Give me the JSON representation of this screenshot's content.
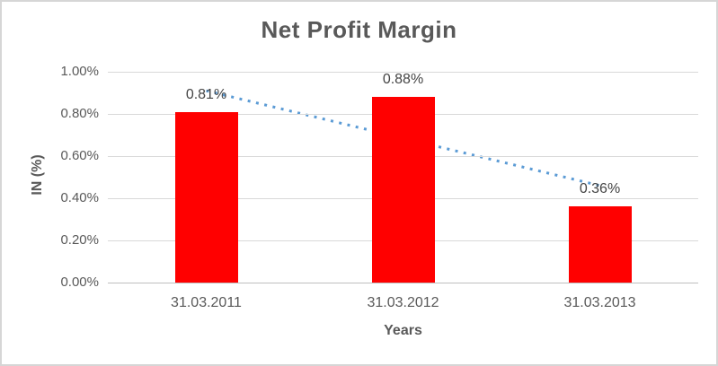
{
  "chart_data": {
    "type": "bar",
    "title": "Net Profit Margin",
    "xlabel": "Years",
    "ylabel": "IN (%)",
    "categories": [
      "31.03.2011",
      "31.03.2012",
      "31.03.2013"
    ],
    "values": [
      0.81,
      0.88,
      0.36
    ],
    "value_labels": [
      "0.81%",
      "0.88%",
      "0.36%"
    ],
    "ylim": [
      0,
      1.0
    ],
    "yticks": [
      {
        "value": 1.0,
        "label": "1.00%"
      },
      {
        "value": 0.8,
        "label": "0.80%"
      },
      {
        "value": 0.6,
        "label": "0.60%"
      },
      {
        "value": 0.4,
        "label": "0.40%"
      },
      {
        "value": 0.2,
        "label": "0.20%"
      },
      {
        "value": 0.0,
        "label": "0.00%"
      }
    ],
    "grid": true,
    "legend": "none",
    "trendline": {
      "style": "dotted",
      "start_value": 0.91,
      "end_value": 0.46
    },
    "colors": {
      "bar": "#FF0000",
      "trendline": "#5B9BD5",
      "gridline": "#D9D9D9",
      "axis_line": "#BFBFBF",
      "text": "#595959",
      "border": "#D6D6D6",
      "background": "#FFFFFF"
    }
  }
}
